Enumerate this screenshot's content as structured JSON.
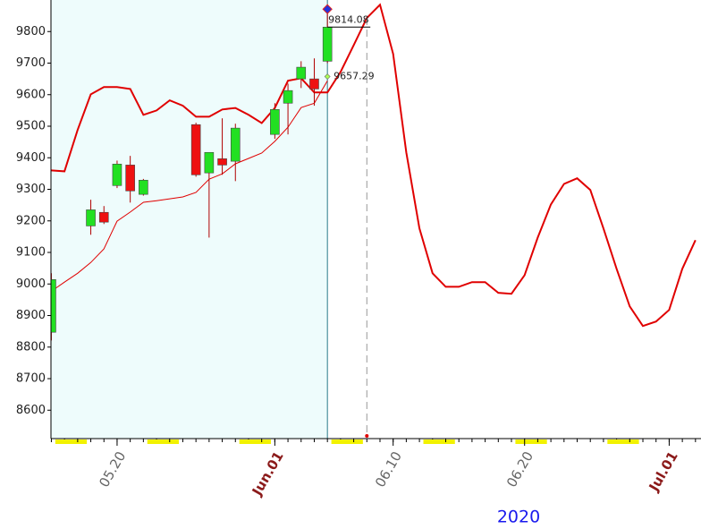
{
  "chart_data": {
    "type": "candlestick",
    "x": [
      -5,
      -2,
      -1,
      0,
      1,
      2,
      6,
      7,
      8,
      9,
      12,
      13,
      14,
      15,
      16
    ],
    "open": [
      8847,
      9184,
      9227,
      9312,
      9377,
      9284,
      9505,
      9352,
      9397,
      9389,
      9474,
      9573,
      9650,
      9650,
      9706
    ],
    "high": [
      9034,
      9267,
      9247,
      9391,
      9406,
      9333,
      9511,
      9417,
      9525,
      9508,
      9573,
      9635,
      9706,
      9715,
      9871
    ],
    "low": [
      8821,
      9156,
      9190,
      9304,
      9258,
      9280,
      9340,
      9147,
      9346,
      9326,
      9460,
      9474,
      9621,
      9565,
      9700
    ],
    "close": [
      9014,
      9235,
      9196,
      9380,
      9295,
      9329,
      9346,
      9417,
      9377,
      9494,
      9553,
      9613,
      9687,
      9618,
      9814.08
    ],
    "up_color": "#22e022",
    "down_color": "#ee1111",
    "overlays": [
      {
        "color": "#e00000",
        "width": 2,
        "x": [
          -5,
          -4,
          -3,
          -2,
          -1,
          0,
          1,
          2,
          3,
          4,
          5,
          6,
          7,
          8,
          9,
          10,
          11,
          12,
          13,
          14,
          15,
          16,
          17,
          18,
          19,
          20,
          21,
          22,
          23,
          24,
          25,
          26,
          27,
          28,
          29,
          30,
          31,
          32,
          33,
          34,
          35,
          36,
          37,
          38,
          39,
          40,
          41,
          42,
          43,
          44
        ],
        "values": [
          9360,
          9357,
          9488,
          9601,
          9624,
          9624,
          9618,
          9536,
          9550,
          9582,
          9565,
          9530,
          9530,
          9553,
          9558,
          9536,
          9510,
          9558,
          9644,
          9652,
          9607,
          9607,
          9672,
          9757,
          9843,
          9885,
          9729,
          9417,
          9176,
          9034,
          8991,
          8991,
          9006,
          9006,
          8972,
          8969,
          9028,
          9147,
          9252,
          9317,
          9335,
          9298,
          9176,
          9048,
          8929,
          8867,
          8881,
          8918,
          9048,
          9139
        ]
      },
      {
        "color": "#e00000",
        "width": 1,
        "x": [
          -5,
          -4,
          -3,
          -2,
          -1,
          0,
          1,
          2,
          3,
          4,
          5,
          6,
          7,
          8,
          9,
          10,
          11,
          12,
          13,
          14,
          15,
          16
        ],
        "values": [
          8977,
          9006,
          9034,
          9068,
          9111,
          9199,
          9228,
          9259,
          9264,
          9270,
          9276,
          9290,
          9332,
          9349,
          9381,
          9398,
          9415,
          9452,
          9497,
          9559,
          9573,
          9644
        ]
      }
    ],
    "annotations": [
      9814.08,
      9657.29
    ],
    "marker_x": 19,
    "xlim": [
      -5.03,
      44.42
    ],
    "xticks": [
      {
        "value": 0,
        "label": "05.20"
      },
      {
        "value": 12,
        "label": "Jun.01"
      },
      {
        "value": 21,
        "label": "06.10"
      },
      {
        "value": 31,
        "label": "06.20"
      },
      {
        "value": 42,
        "label": "Jul.01"
      }
    ],
    "xtick_colors": [
      "#666666",
      "#8b1a1a",
      "#666666",
      "#666666",
      "#8b1a1a"
    ],
    "ylim": [
      8510,
      9900
    ],
    "yticks": [
      8600,
      8700,
      8800,
      8900,
      9000,
      9100,
      9200,
      9300,
      9400,
      9500,
      9600,
      9700,
      9800
    ],
    "year_label": "2020"
  }
}
